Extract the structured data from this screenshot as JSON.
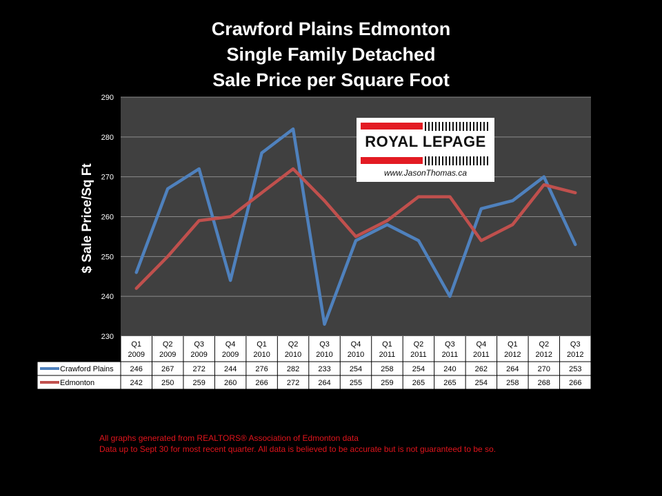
{
  "chart_data": {
    "type": "line",
    "title": [
      "Crawford Plains Edmonton",
      "Single Family Detached",
      "Sale Price per Square Foot"
    ],
    "ylabel": "$ Sale Price/Sq Ft",
    "xlabel": "",
    "ylim": [
      230,
      290
    ],
    "yticks": [
      230,
      240,
      250,
      260,
      270,
      280,
      290
    ],
    "grid": true,
    "categories": [
      [
        "Q1",
        "2009"
      ],
      [
        "Q2",
        "2009"
      ],
      [
        "Q3",
        "2009"
      ],
      [
        "Q4",
        "2009"
      ],
      [
        "Q1",
        "2010"
      ],
      [
        "Q2",
        "2010"
      ],
      [
        "Q3",
        "2010"
      ],
      [
        "Q4",
        "2010"
      ],
      [
        "Q1",
        "2011"
      ],
      [
        "Q2",
        "2011"
      ],
      [
        "Q3",
        "2011"
      ],
      [
        "Q4",
        "2011"
      ],
      [
        "Q1",
        "2012"
      ],
      [
        "Q2",
        "2012"
      ],
      [
        "Q3",
        "2012"
      ]
    ],
    "series": [
      {
        "name": "Crawford Plains",
        "color": "#4f81bd",
        "values": [
          246,
          267,
          272,
          244,
          276,
          282,
          233,
          254,
          258,
          254,
          240,
          262,
          264,
          270,
          253
        ]
      },
      {
        "name": "Edmonton",
        "color": "#c0504d",
        "values": [
          242,
          250,
          259,
          260,
          266,
          272,
          264,
          255,
          259,
          265,
          265,
          254,
          258,
          268,
          266
        ]
      }
    ]
  },
  "logo": {
    "brand": "ROYAL LEPAGE",
    "url": "www.JasonThomas.ca"
  },
  "footer": {
    "line1": "All graphs generated from REALTORS® Association of Edmonton data",
    "line2": "Data up to Sept 30 for most recent quarter. All data is believed to be accurate but is not guaranteed to be so."
  },
  "colors": {
    "background": "#000000",
    "plot_area": "#404040",
    "gridline": "#8c8c8c",
    "footer_text": "#e0141c",
    "logo_red": "#e31b23"
  }
}
